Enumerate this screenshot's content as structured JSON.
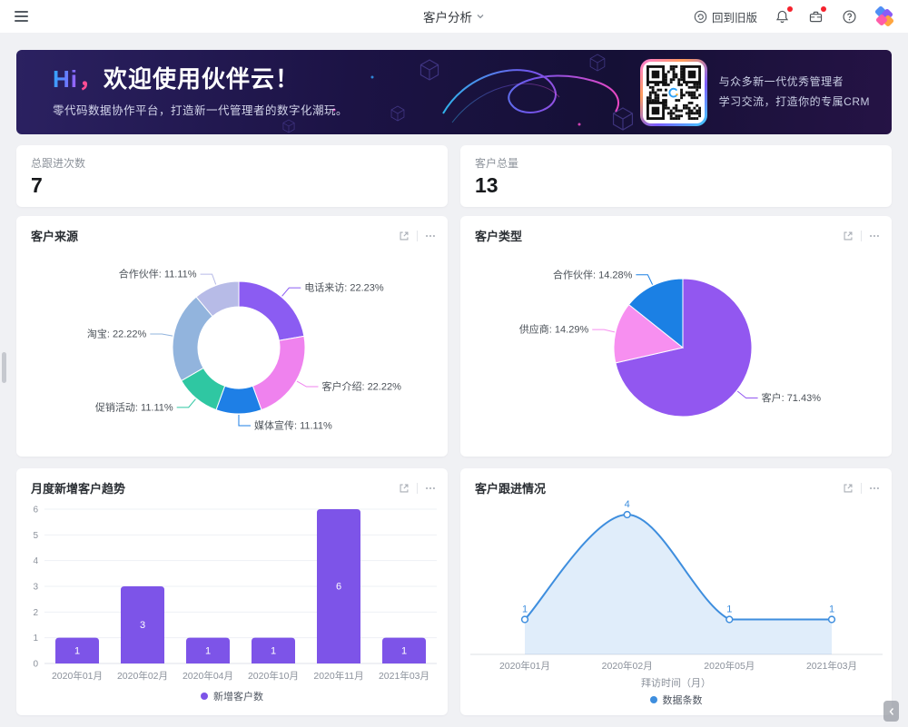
{
  "topbar": {
    "title": "客户分析",
    "back_old_label": "回到旧版"
  },
  "banner": {
    "title_hi": "Hi",
    "title_comma": "，",
    "title_rest": "欢迎使用伙伴云！",
    "subtitle": "零代码数据协作平台，打造新一代管理者的数字化潮玩。",
    "qr_line1": "与众多新一代优秀管理者",
    "qr_line2": "学习交流，打造你的专属CRM"
  },
  "stats": [
    {
      "label": "总跟进次数",
      "value": "7"
    },
    {
      "label": "客户总量",
      "value": "13"
    }
  ],
  "cards": {
    "source_title": "客户来源",
    "type_title": "客户类型",
    "monthly_title": "月度新增客户趋势",
    "followup_title": "客户跟进情况"
  },
  "chart_data": [
    {
      "id": "customer-source",
      "type": "pie",
      "variant": "donut",
      "title": "客户来源",
      "slices": [
        {
          "label": "电话来访",
          "pct": 22.23,
          "color": "#8b5cf2"
        },
        {
          "label": "客户介绍",
          "pct": 22.22,
          "color": "#ef82ee"
        },
        {
          "label": "媒体宣传",
          "pct": 11.11,
          "color": "#1e7fe6"
        },
        {
          "label": "促销活动",
          "pct": 11.11,
          "color": "#2fc7a2"
        },
        {
          "label": "淘宝",
          "pct": 22.22,
          "color": "#92b4dd"
        },
        {
          "label": "合作伙伴",
          "pct": 11.11,
          "color": "#b7bbe7"
        }
      ]
    },
    {
      "id": "customer-type",
      "type": "pie",
      "variant": "pie",
      "title": "客户类型",
      "slices": [
        {
          "label": "客户",
          "pct": 71.43,
          "color": "#9257f0"
        },
        {
          "label": "供应商",
          "pct": 14.29,
          "color": "#f78ff0"
        },
        {
          "label": "合作伙伴",
          "pct": 14.28,
          "color": "#1b80e4"
        }
      ]
    },
    {
      "id": "monthly-new-customers",
      "type": "bar",
      "title": "月度新增客户趋势",
      "categories": [
        "2020年01月",
        "2020年02月",
        "2020年04月",
        "2020年10月",
        "2020年11月",
        "2021年03月"
      ],
      "values": [
        1,
        3,
        1,
        1,
        6,
        1
      ],
      "ylim": [
        0,
        6
      ],
      "yticks": [
        0,
        1,
        2,
        3,
        4,
        5,
        6
      ],
      "bar_color": "#7d54e8",
      "legend": "新增客户数",
      "grid": true
    },
    {
      "id": "customer-followup",
      "type": "area",
      "title": "客户跟进情况",
      "categories": [
        "2020年01月",
        "2020年02月",
        "2020年05月",
        "2021年03月"
      ],
      "values": [
        1,
        4,
        1,
        1
      ],
      "line_color": "#3e8ede",
      "fill_color": "rgba(62,142,222,0.16)",
      "xlabel": "拜访时间（月）",
      "legend": "数据条数"
    }
  ]
}
